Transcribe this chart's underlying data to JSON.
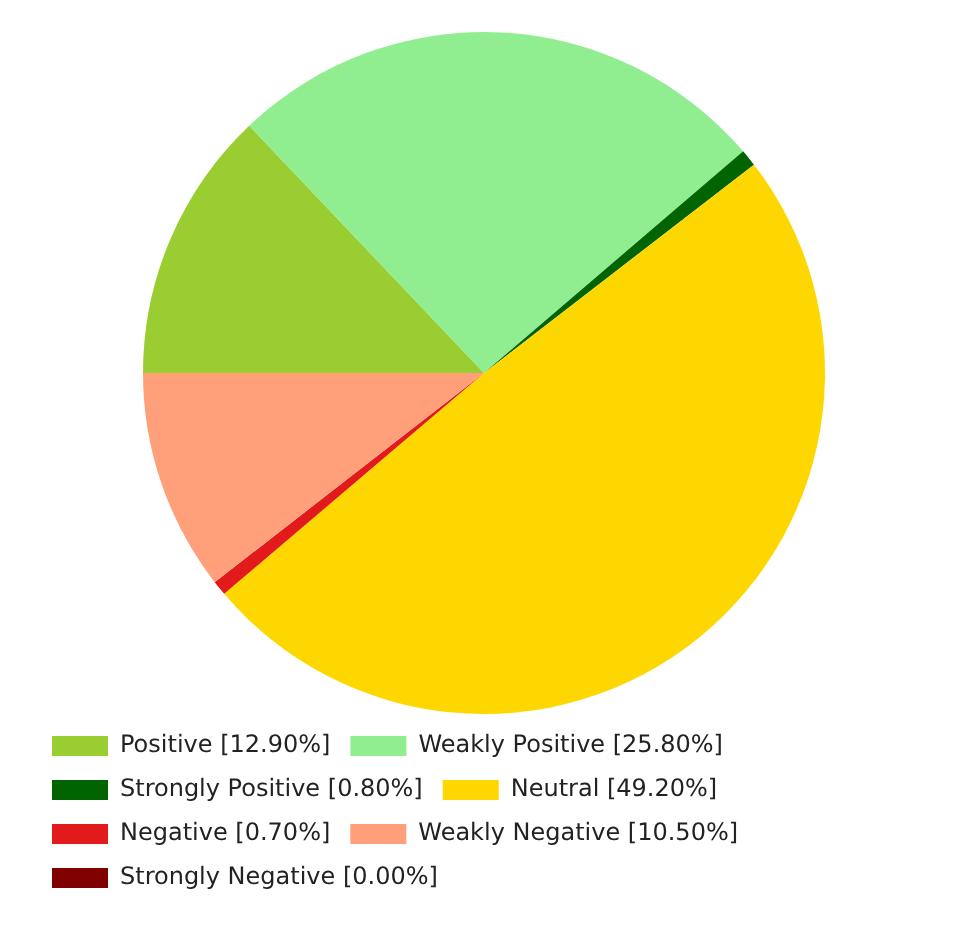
{
  "chart_data": {
    "type": "pie",
    "categories": [
      "Positive [12.90%]",
      "Weakly Positive [25.80%]",
      "Strongly Positive [0.80%]",
      "Neutral [49.20%]",
      "Negative [0.70%]",
      "Weakly Negative [10.50%]",
      "Strongly Negative [0.00%]"
    ],
    "values": [
      12.9,
      25.8,
      0.8,
      49.2,
      0.7,
      10.5,
      0.0
    ],
    "colors": [
      "#9acd32",
      "#90ee90",
      "#006400",
      "#ffd700",
      "#e31a1c",
      "#ffa07a",
      "#800000"
    ],
    "legend": "bottom left"
  }
}
